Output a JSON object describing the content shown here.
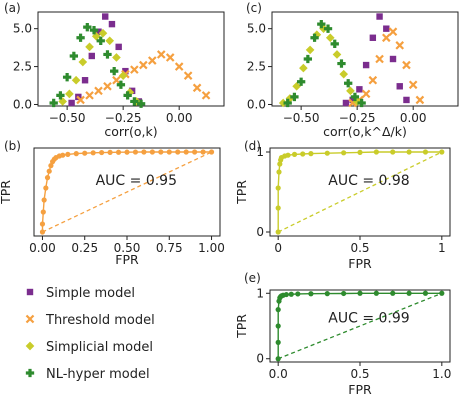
{
  "colors": {
    "simple": "#7b2d8e",
    "threshold": "#f5a040",
    "simplicial": "#c9cc2a",
    "nlhyper": "#2e8b2e",
    "axis": "#222222"
  },
  "legend": [
    {
      "key": "simple",
      "label": "Simple model",
      "marker": "square"
    },
    {
      "key": "threshold",
      "label": "Threshold model",
      "marker": "x"
    },
    {
      "key": "simplicial",
      "label": "Simplicial model",
      "marker": "diamond"
    },
    {
      "key": "nlhyper",
      "label": "NL-hyper model",
      "marker": "plus"
    }
  ],
  "chart_data": [
    {
      "panel": "(a)",
      "type": "scatter",
      "xlabel": "corr(o,k)",
      "ylabel": "",
      "xlim": [
        -0.63,
        0.2
      ],
      "ylim": [
        -0.1,
        6.1
      ],
      "xticks": [
        -0.5,
        -0.25,
        0.0
      ],
      "xtick_labels": [
        "−0.50",
        "−0.25",
        "0.00"
      ],
      "yticks": [
        0.0,
        2.5,
        5.0
      ],
      "ytick_labels": [
        "0.0",
        "2.5",
        "5.0"
      ],
      "series": [
        {
          "key": "simple",
          "x": [
            -0.48,
            -0.45,
            -0.42,
            -0.39,
            -0.36,
            -0.33,
            -0.3,
            -0.27,
            -0.24,
            -0.21,
            -0.18
          ],
          "y": [
            0.1,
            0.5,
            1.6,
            3.2,
            4.8,
            5.8,
            5.3,
            3.8,
            2.2,
            0.9,
            0.2
          ]
        },
        {
          "key": "threshold",
          "x": [
            -0.44,
            -0.4,
            -0.36,
            -0.32,
            -0.28,
            -0.24,
            -0.2,
            -0.16,
            -0.12,
            -0.08,
            -0.04,
            0.0,
            0.04,
            0.08,
            0.12
          ],
          "y": [
            0.3,
            0.6,
            0.9,
            1.2,
            1.6,
            2.0,
            2.3,
            2.6,
            2.9,
            3.3,
            3.1,
            2.5,
            1.9,
            1.1,
            0.6
          ]
        },
        {
          "key": "simplicial",
          "x": [
            -0.52,
            -0.49,
            -0.46,
            -0.43,
            -0.4,
            -0.37,
            -0.34,
            -0.31,
            -0.28,
            -0.25,
            -0.22,
            -0.19
          ],
          "y": [
            0.2,
            0.7,
            1.6,
            2.8,
            3.8,
            4.5,
            4.7,
            4.2,
            3.1,
            1.9,
            0.8,
            0.2
          ]
        },
        {
          "key": "nlhyper",
          "x": [
            -0.56,
            -0.53,
            -0.5,
            -0.47,
            -0.44,
            -0.41,
            -0.38,
            -0.35,
            -0.32,
            -0.29,
            -0.26,
            -0.23,
            -0.2,
            -0.17
          ],
          "y": [
            0.1,
            0.6,
            1.8,
            3.2,
            4.4,
            5.1,
            4.9,
            4.2,
            3.3,
            2.2,
            1.3,
            0.6,
            0.2,
            0.05
          ]
        }
      ]
    },
    {
      "panel": "(c)",
      "type": "scatter",
      "xlabel": "corr(o,k^Δ/k)",
      "ylabel": "",
      "xlim": [
        -0.63,
        0.2
      ],
      "ylim": [
        -0.1,
        6.1
      ],
      "xticks": [
        -0.5,
        -0.25,
        0.0
      ],
      "xtick_labels": [
        "−0.50",
        "−0.25",
        "0.00"
      ],
      "yticks": [
        0.0,
        2.5,
        5.0
      ],
      "ytick_labels": [
        "0.0",
        "2.5",
        "5.0"
      ],
      "series": [
        {
          "key": "simple",
          "x": [
            -0.3,
            -0.27,
            -0.24,
            -0.21,
            -0.18,
            -0.15,
            -0.12,
            -0.09,
            -0.06,
            -0.03
          ],
          "y": [
            0.1,
            0.3,
            1.0,
            2.6,
            4.4,
            5.8,
            5.0,
            3.0,
            1.2,
            0.3
          ]
        },
        {
          "key": "threshold",
          "x": [
            -0.27,
            -0.24,
            -0.21,
            -0.18,
            -0.15,
            -0.12,
            -0.09,
            -0.06,
            -0.03,
            0.0,
            0.03
          ],
          "y": [
            0.1,
            0.3,
            0.7,
            1.6,
            3.0,
            4.4,
            4.8,
            3.9,
            2.6,
            1.3,
            0.3
          ]
        },
        {
          "key": "simplicial",
          "x": [
            -0.58,
            -0.55,
            -0.52,
            -0.49,
            -0.46,
            -0.43,
            -0.4,
            -0.37,
            -0.34,
            -0.31,
            -0.28,
            -0.25
          ],
          "y": [
            0.1,
            0.4,
            1.2,
            2.4,
            3.6,
            4.6,
            5.0,
            4.4,
            3.3,
            2.0,
            0.9,
            0.2
          ]
        },
        {
          "key": "nlhyper",
          "x": [
            -0.56,
            -0.53,
            -0.5,
            -0.47,
            -0.44,
            -0.41,
            -0.38,
            -0.35,
            -0.32,
            -0.29,
            -0.26,
            -0.23
          ],
          "y": [
            0.1,
            0.5,
            1.5,
            3.0,
            4.4,
            5.3,
            5.0,
            4.0,
            2.7,
            1.4,
            0.5,
            0.1
          ]
        }
      ]
    },
    {
      "panel": "(b)",
      "type": "line",
      "xlabel": "FPR",
      "ylabel": "TPR",
      "xlim": [
        -0.05,
        1.05
      ],
      "ylim": [
        -0.05,
        1.05
      ],
      "xticks": [
        0.0,
        0.25,
        0.5,
        0.75,
        1.0
      ],
      "xtick_labels": [
        "0.00",
        "0.25",
        "0.50",
        "0.75",
        "1.00"
      ],
      "yticks": [],
      "ytick_labels": [],
      "auc": "AUC = 0.95",
      "series": [
        {
          "key": "threshold",
          "x": [
            0.0,
            0.0,
            0.005,
            0.01,
            0.02,
            0.03,
            0.04,
            0.05,
            0.06,
            0.07,
            0.08,
            0.1,
            0.12,
            0.15,
            0.2,
            0.25,
            0.3,
            0.35,
            0.4,
            0.45,
            0.5,
            0.55,
            0.6,
            0.65,
            0.7,
            0.75,
            0.8,
            0.85,
            0.9,
            0.95,
            1.0
          ],
          "y": [
            0.0,
            0.1,
            0.25,
            0.4,
            0.55,
            0.68,
            0.76,
            0.83,
            0.88,
            0.91,
            0.93,
            0.95,
            0.96,
            0.97,
            0.98,
            0.985,
            0.99,
            0.993,
            0.995,
            0.997,
            0.998,
            0.999,
            1.0,
            1.0,
            1.0,
            1.0,
            1.0,
            1.0,
            1.0,
            1.0,
            1.0
          ]
        }
      ]
    },
    {
      "panel": "(d)",
      "type": "line",
      "xlabel": "FPR",
      "ylabel": "TPR",
      "xlim": [
        -0.05,
        1.05
      ],
      "ylim": [
        -0.05,
        1.05
      ],
      "xticks": [
        0.0,
        0.5,
        1.0
      ],
      "xtick_labels": [
        "0",
        "0.5",
        "1"
      ],
      "yticks": [
        0.0,
        1.0
      ],
      "ytick_labels": [
        "0",
        "1"
      ],
      "auc": "AUC = 0.98",
      "series": [
        {
          "key": "simplicial",
          "x": [
            0.0,
            0.0,
            0.0,
            0.005,
            0.01,
            0.015,
            0.02,
            0.04,
            0.06,
            0.1,
            0.15,
            0.2,
            0.3,
            0.4,
            0.5,
            0.6,
            0.7,
            0.8,
            0.9,
            1.0
          ],
          "y": [
            0.0,
            0.3,
            0.55,
            0.75,
            0.85,
            0.9,
            0.93,
            0.95,
            0.96,
            0.97,
            0.975,
            0.98,
            0.985,
            0.99,
            0.995,
            1.0,
            1.0,
            1.0,
            1.0,
            1.0
          ]
        }
      ]
    },
    {
      "panel": "(e)",
      "type": "line",
      "xlabel": "FPR",
      "ylabel": "TPR",
      "xlim": [
        -0.05,
        1.05
      ],
      "ylim": [
        -0.05,
        1.05
      ],
      "xticks": [
        0.0,
        0.5,
        1.0
      ],
      "xtick_labels": [
        "0.0",
        "0.5",
        "1.0"
      ],
      "yticks": [
        0.0,
        1.0
      ],
      "ytick_labels": [
        "0",
        "1"
      ],
      "auc": "AUC = 0.99",
      "series": [
        {
          "key": "nlhyper",
          "x": [
            0.0,
            0.0,
            0.0,
            0.0,
            0.005,
            0.01,
            0.015,
            0.02,
            0.03,
            0.05,
            0.08,
            0.12,
            0.2,
            0.3,
            0.4,
            0.5,
            0.6,
            0.7,
            0.8,
            0.9,
            1.0
          ],
          "y": [
            0.0,
            0.25,
            0.5,
            0.75,
            0.88,
            0.93,
            0.95,
            0.96,
            0.97,
            0.98,
            0.985,
            0.99,
            0.993,
            0.995,
            0.997,
            1.0,
            1.0,
            1.0,
            1.0,
            1.0,
            1.0
          ]
        }
      ]
    }
  ]
}
